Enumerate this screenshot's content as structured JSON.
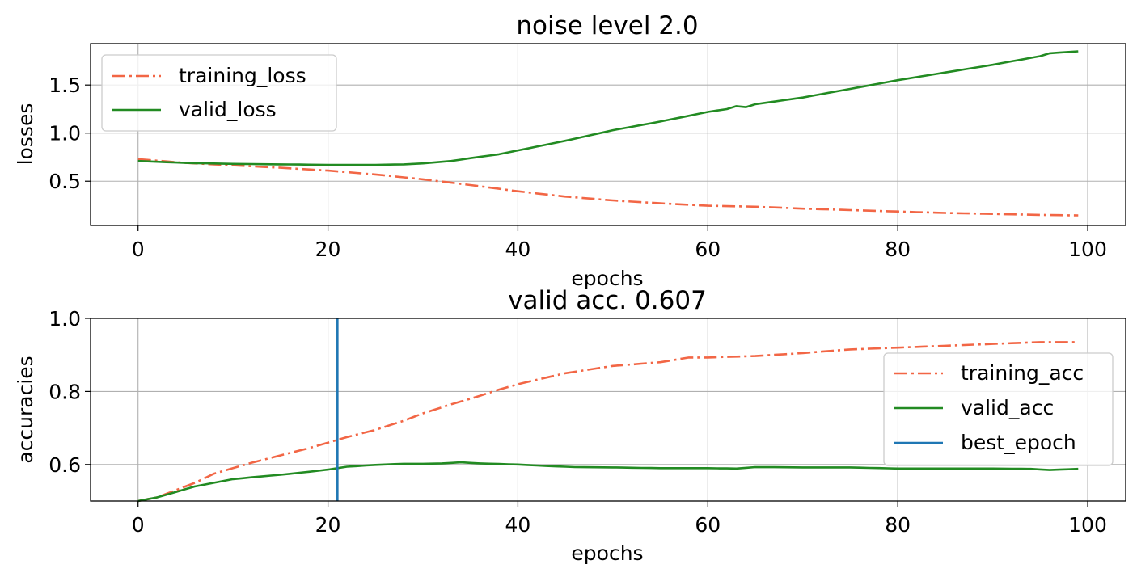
{
  "chart_data": [
    {
      "type": "line",
      "title": "noise level 2.0",
      "xlabel": "epochs",
      "ylabel": "losses",
      "xlim": [
        -5,
        104
      ],
      "ylim": [
        0.04,
        1.93
      ],
      "xticks": [
        0,
        20,
        40,
        60,
        80,
        100
      ],
      "xtick_labels": [
        "0",
        "20",
        "40",
        "60",
        "80",
        "100"
      ],
      "yticks": [
        0.5,
        1.0,
        1.5
      ],
      "ytick_labels": [
        "0.5",
        "1.0",
        "1.5"
      ],
      "grid": true,
      "legend_position": "upper-left",
      "series": [
        {
          "name": "training_loss",
          "style": "dashdot",
          "color": "#f26645",
          "knots": [
            [
              0,
              0.73
            ],
            [
              5,
              0.69
            ],
            [
              10,
              0.665
            ],
            [
              15,
              0.64
            ],
            [
              20,
              0.61
            ],
            [
              25,
              0.57
            ],
            [
              30,
              0.52
            ],
            [
              35,
              0.46
            ],
            [
              40,
              0.395
            ],
            [
              45,
              0.34
            ],
            [
              50,
              0.3
            ],
            [
              55,
              0.27
            ],
            [
              60,
              0.245
            ],
            [
              65,
              0.235
            ],
            [
              70,
              0.215
            ],
            [
              75,
              0.2
            ],
            [
              80,
              0.185
            ],
            [
              85,
              0.17
            ],
            [
              90,
              0.16
            ],
            [
              95,
              0.15
            ],
            [
              99,
              0.145
            ]
          ]
        },
        {
          "name": "valid_loss",
          "style": "solid",
          "color": "#228b22",
          "knots": [
            [
              0,
              0.71
            ],
            [
              5,
              0.69
            ],
            [
              10,
              0.68
            ],
            [
              15,
              0.675
            ],
            [
              20,
              0.67
            ],
            [
              25,
              0.67
            ],
            [
              28,
              0.675
            ],
            [
              30,
              0.685
            ],
            [
              33,
              0.71
            ],
            [
              35,
              0.74
            ],
            [
              38,
              0.78
            ],
            [
              40,
              0.82
            ],
            [
              45,
              0.92
            ],
            [
              50,
              1.03
            ],
            [
              55,
              1.12
            ],
            [
              60,
              1.22
            ],
            [
              62,
              1.25
            ],
            [
              63,
              1.28
            ],
            [
              64,
              1.27
            ],
            [
              65,
              1.3
            ],
            [
              70,
              1.37
            ],
            [
              75,
              1.46
            ],
            [
              80,
              1.55
            ],
            [
              85,
              1.63
            ],
            [
              90,
              1.71
            ],
            [
              95,
              1.8
            ],
            [
              96,
              1.83
            ],
            [
              99,
              1.85
            ]
          ]
        }
      ]
    },
    {
      "type": "line",
      "title": "valid acc. 0.607",
      "xlabel": "epochs",
      "ylabel": "accuracies",
      "xlim": [
        -5,
        104
      ],
      "ylim": [
        0.5,
        1.0
      ],
      "xticks": [
        0,
        20,
        40,
        60,
        80,
        100
      ],
      "xtick_labels": [
        "0",
        "20",
        "40",
        "60",
        "80",
        "100"
      ],
      "yticks": [
        0.6,
        0.8,
        1.0
      ],
      "ytick_labels": [
        "0.6",
        "0.8",
        "1.0"
      ],
      "grid": true,
      "legend_position": "right",
      "best_epoch": {
        "name": "best_epoch",
        "x": 21,
        "color": "#1f77b4"
      },
      "series": [
        {
          "name": "training_acc",
          "style": "dashdot",
          "color": "#f26645",
          "knots": [
            [
              0,
              0.5
            ],
            [
              2,
              0.51
            ],
            [
              4,
              0.53
            ],
            [
              6,
              0.55
            ],
            [
              8,
              0.575
            ],
            [
              10,
              0.59
            ],
            [
              12,
              0.605
            ],
            [
              15,
              0.625
            ],
            [
              18,
              0.645
            ],
            [
              20,
              0.66
            ],
            [
              22,
              0.675
            ],
            [
              25,
              0.695
            ],
            [
              28,
              0.72
            ],
            [
              30,
              0.74
            ],
            [
              33,
              0.765
            ],
            [
              35,
              0.78
            ],
            [
              38,
              0.805
            ],
            [
              40,
              0.82
            ],
            [
              45,
              0.85
            ],
            [
              50,
              0.87
            ],
            [
              55,
              0.88
            ],
            [
              58,
              0.893
            ],
            [
              60,
              0.893
            ],
            [
              65,
              0.897
            ],
            [
              70,
              0.905
            ],
            [
              75,
              0.915
            ],
            [
              80,
              0.92
            ],
            [
              85,
              0.925
            ],
            [
              90,
              0.93
            ],
            [
              95,
              0.935
            ],
            [
              99,
              0.935
            ]
          ]
        },
        {
          "name": "valid_acc",
          "style": "solid",
          "color": "#228b22",
          "knots": [
            [
              0,
              0.5
            ],
            [
              2,
              0.51
            ],
            [
              4,
              0.525
            ],
            [
              6,
              0.54
            ],
            [
              8,
              0.55
            ],
            [
              10,
              0.56
            ],
            [
              12,
              0.565
            ],
            [
              15,
              0.572
            ],
            [
              18,
              0.58
            ],
            [
              20,
              0.586
            ],
            [
              22,
              0.594
            ],
            [
              25,
              0.599
            ],
            [
              28,
              0.602
            ],
            [
              30,
              0.602
            ],
            [
              32,
              0.603
            ],
            [
              34,
              0.606
            ],
            [
              36,
              0.603
            ],
            [
              40,
              0.6
            ],
            [
              43,
              0.596
            ],
            [
              46,
              0.593
            ],
            [
              50,
              0.592
            ],
            [
              55,
              0.59
            ],
            [
              60,
              0.59
            ],
            [
              63,
              0.589
            ],
            [
              65,
              0.593
            ],
            [
              70,
              0.592
            ],
            [
              75,
              0.592
            ],
            [
              80,
              0.589
            ],
            [
              85,
              0.589
            ],
            [
              90,
              0.589
            ],
            [
              94,
              0.588
            ],
            [
              96,
              0.585
            ],
            [
              99,
              0.588
            ]
          ]
        }
      ]
    }
  ]
}
